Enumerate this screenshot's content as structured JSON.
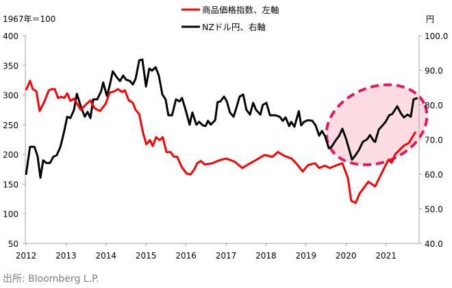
{
  "chart_data": {
    "type": "line",
    "left_unit_label": "1967年＝100",
    "right_unit_label": "円",
    "source": "出所: Bloomberg L.P.",
    "left_axis": {
      "range": [
        50,
        400
      ],
      "ticks": [
        "50",
        "100",
        "150",
        "200",
        "250",
        "300",
        "350",
        "400"
      ]
    },
    "right_axis": {
      "range": [
        40,
        100
      ],
      "ticks": [
        "40.0",
        "50.0",
        "60.0",
        "70.0",
        "80.0",
        "90.0",
        "100.0"
      ]
    },
    "x_axis": {
      "range": [
        2012,
        2022
      ],
      "ticks": [
        "2012",
        "2013",
        "2014",
        "2015",
        "2016",
        "2017",
        "2018",
        "2019",
        "2020",
        "2021"
      ]
    },
    "legend_position": "top-center",
    "series": [
      {
        "name": "商品価格指数、左軸",
        "axis": "left",
        "color": "#ff0000",
        "points": [
          [
            2012.0,
            308
          ],
          [
            2012.1,
            324
          ],
          [
            2012.17,
            310
          ],
          [
            2012.26,
            306
          ],
          [
            2012.34,
            273
          ],
          [
            2012.46,
            289
          ],
          [
            2012.57,
            308
          ],
          [
            2012.65,
            310
          ],
          [
            2012.72,
            310
          ],
          [
            2012.8,
            295
          ],
          [
            2012.89,
            297
          ],
          [
            2012.96,
            295
          ],
          [
            2013.03,
            303
          ],
          [
            2013.11,
            290
          ],
          [
            2013.2,
            294
          ],
          [
            2013.28,
            285
          ],
          [
            2013.37,
            275
          ],
          [
            2013.51,
            285
          ],
          [
            2013.61,
            291
          ],
          [
            2013.71,
            278
          ],
          [
            2013.85,
            273
          ],
          [
            2013.99,
            285
          ],
          [
            2014.09,
            304
          ],
          [
            2014.2,
            306
          ],
          [
            2014.3,
            310
          ],
          [
            2014.4,
            305
          ],
          [
            2014.47,
            308
          ],
          [
            2014.57,
            291
          ],
          [
            2014.67,
            287
          ],
          [
            2014.74,
            275
          ],
          [
            2014.83,
            268
          ],
          [
            2014.93,
            235
          ],
          [
            2015.01,
            217
          ],
          [
            2015.1,
            224
          ],
          [
            2015.17,
            214
          ],
          [
            2015.25,
            229
          ],
          [
            2015.34,
            224
          ],
          [
            2015.42,
            229
          ],
          [
            2015.51,
            204
          ],
          [
            2015.61,
            204
          ],
          [
            2015.7,
            196
          ],
          [
            2015.78,
            196
          ],
          [
            2015.89,
            179
          ],
          [
            2016.01,
            168
          ],
          [
            2016.11,
            166
          ],
          [
            2016.2,
            174
          ],
          [
            2016.28,
            185
          ],
          [
            2016.37,
            189
          ],
          [
            2016.47,
            183
          ],
          [
            2016.66,
            185
          ],
          [
            2016.83,
            190
          ],
          [
            2017.0,
            193
          ],
          [
            2017.21,
            188
          ],
          [
            2017.41,
            177
          ],
          [
            2017.55,
            183
          ],
          [
            2017.79,
            192
          ],
          [
            2017.96,
            199
          ],
          [
            2018.16,
            196
          ],
          [
            2018.3,
            204
          ],
          [
            2018.47,
            197
          ],
          [
            2018.64,
            193
          ],
          [
            2018.78,
            183
          ],
          [
            2018.92,
            171
          ],
          [
            2019.05,
            182
          ],
          [
            2019.23,
            185
          ],
          [
            2019.33,
            177
          ],
          [
            2019.47,
            181
          ],
          [
            2019.6,
            177
          ],
          [
            2019.74,
            181
          ],
          [
            2019.91,
            185
          ],
          [
            2020.05,
            160
          ],
          [
            2020.13,
            122
          ],
          [
            2020.24,
            118
          ],
          [
            2020.34,
            134
          ],
          [
            2020.56,
            154
          ],
          [
            2020.73,
            146
          ],
          [
            2020.89,
            168
          ],
          [
            2021.06,
            191
          ],
          [
            2021.14,
            186
          ],
          [
            2021.23,
            200
          ],
          [
            2021.45,
            215
          ],
          [
            2021.57,
            219
          ],
          [
            2021.74,
            238
          ]
        ]
      },
      {
        "name": "NZドル円、右軸",
        "axis": "right",
        "color": "#000000",
        "points": [
          [
            2012.0,
            59.8
          ],
          [
            2012.1,
            67.9
          ],
          [
            2012.21,
            67.9
          ],
          [
            2012.29,
            65.2
          ],
          [
            2012.36,
            59.0
          ],
          [
            2012.43,
            64.0
          ],
          [
            2012.51,
            63.2
          ],
          [
            2012.6,
            63.2
          ],
          [
            2012.68,
            65.0
          ],
          [
            2012.77,
            65.5
          ],
          [
            2012.86,
            67.9
          ],
          [
            2012.94,
            71.7
          ],
          [
            2013.03,
            76.6
          ],
          [
            2013.11,
            76.2
          ],
          [
            2013.2,
            78.6
          ],
          [
            2013.27,
            83.2
          ],
          [
            2013.37,
            79.6
          ],
          [
            2013.47,
            76.6
          ],
          [
            2013.54,
            78.0
          ],
          [
            2013.61,
            76.2
          ],
          [
            2013.68,
            81.6
          ],
          [
            2013.78,
            81.6
          ],
          [
            2013.88,
            84.0
          ],
          [
            2013.93,
            86.5
          ],
          [
            2014.02,
            82.6
          ],
          [
            2014.09,
            85.5
          ],
          [
            2014.17,
            89.7
          ],
          [
            2014.26,
            88.1
          ],
          [
            2014.35,
            86.9
          ],
          [
            2014.43,
            88.5
          ],
          [
            2014.5,
            87.3
          ],
          [
            2014.6,
            86.9
          ],
          [
            2014.67,
            85.9
          ],
          [
            2014.74,
            87.5
          ],
          [
            2014.83,
            92.9
          ],
          [
            2014.91,
            93.1
          ],
          [
            2015.0,
            85.3
          ],
          [
            2015.08,
            90.5
          ],
          [
            2015.15,
            89.9
          ],
          [
            2015.24,
            90.9
          ],
          [
            2015.32,
            88.5
          ],
          [
            2015.41,
            83.0
          ],
          [
            2015.49,
            81.6
          ],
          [
            2015.56,
            77.0
          ],
          [
            2015.65,
            77.0
          ],
          [
            2015.75,
            81.6
          ],
          [
            2015.84,
            81.0
          ],
          [
            2015.9,
            82.0
          ],
          [
            2015.99,
            78.6
          ],
          [
            2016.09,
            74.3
          ],
          [
            2016.16,
            77.8
          ],
          [
            2016.26,
            74.3
          ],
          [
            2016.33,
            75.1
          ],
          [
            2016.42,
            74.1
          ],
          [
            2016.49,
            73.9
          ],
          [
            2016.55,
            75.4
          ],
          [
            2016.62,
            74.3
          ],
          [
            2016.73,
            75.6
          ],
          [
            2016.79,
            80.8
          ],
          [
            2016.86,
            81.0
          ],
          [
            2016.95,
            82.4
          ],
          [
            2017.02,
            81.0
          ],
          [
            2017.1,
            77.8
          ],
          [
            2017.19,
            76.6
          ],
          [
            2017.27,
            79.6
          ],
          [
            2017.34,
            82.4
          ],
          [
            2017.43,
            83.0
          ],
          [
            2017.51,
            78.6
          ],
          [
            2017.6,
            77.2
          ],
          [
            2017.68,
            80.6
          ],
          [
            2017.75,
            78.6
          ],
          [
            2017.86,
            77.2
          ],
          [
            2017.92,
            80.0
          ],
          [
            2018.01,
            80.6
          ],
          [
            2018.1,
            77.0
          ],
          [
            2018.23,
            77.0
          ],
          [
            2018.34,
            76.6
          ],
          [
            2018.42,
            75.4
          ],
          [
            2018.49,
            76.4
          ],
          [
            2018.58,
            73.9
          ],
          [
            2018.63,
            75.1
          ],
          [
            2018.71,
            73.7
          ],
          [
            2018.82,
            78.2
          ],
          [
            2018.88,
            74.1
          ],
          [
            2018.95,
            75.1
          ],
          [
            2019.05,
            75.6
          ],
          [
            2019.16,
            75.4
          ],
          [
            2019.24,
            74.1
          ],
          [
            2019.33,
            71.1
          ],
          [
            2019.4,
            72.5
          ],
          [
            2019.48,
            70.9
          ],
          [
            2019.57,
            67.5
          ],
          [
            2019.64,
            67.9
          ],
          [
            2019.74,
            69.7
          ],
          [
            2019.83,
            71.1
          ],
          [
            2019.91,
            73.1
          ],
          [
            2020.0,
            70.3
          ],
          [
            2020.08,
            67.1
          ],
          [
            2020.15,
            64.2
          ],
          [
            2020.24,
            65.5
          ],
          [
            2020.32,
            66.9
          ],
          [
            2020.42,
            69.3
          ],
          [
            2020.53,
            70.1
          ],
          [
            2020.6,
            71.3
          ],
          [
            2020.7,
            69.5
          ],
          [
            2020.73,
            69.3
          ],
          [
            2020.82,
            72.9
          ],
          [
            2020.9,
            73.9
          ],
          [
            2020.99,
            75.1
          ],
          [
            2021.08,
            77.0
          ],
          [
            2021.16,
            77.4
          ],
          [
            2021.28,
            79.6
          ],
          [
            2021.38,
            77.4
          ],
          [
            2021.45,
            76.4
          ],
          [
            2021.54,
            77.2
          ],
          [
            2021.62,
            76.6
          ],
          [
            2021.69,
            81.6
          ],
          [
            2021.79,
            82.0
          ]
        ]
      }
    ],
    "annotation": {
      "type": "highlight-ellipse",
      "color": "#e8175d",
      "fill": "#fcdce3",
      "period": [
        2019.6,
        2021.8
      ]
    }
  }
}
